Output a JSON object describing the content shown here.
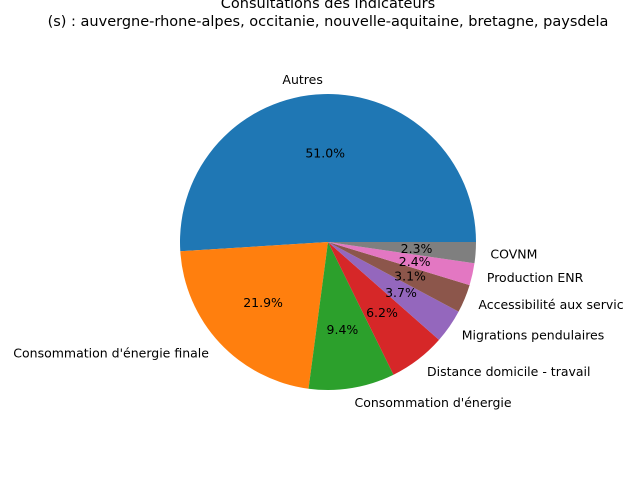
{
  "chart_data": {
    "type": "pie",
    "title": "Consultations des indicateurs",
    "subtitle": "(s) : auvergne-rhone-alpes, occitanie, nouvelle-aquitaine, bretagne, paysdela",
    "slices": [
      {
        "label": "Autres",
        "pct_label": "51.0%",
        "value": 51.0,
        "color": "#1f77b4"
      },
      {
        "label": "Consommation d'énergie finale",
        "pct_label": "21.9%",
        "value": 21.9,
        "color": "#ff7f0e"
      },
      {
        "label": "Consommation d'énergie",
        "pct_label": "9.4%",
        "value": 9.4,
        "color": "#2ca02c"
      },
      {
        "label": "Distance domicile - travail",
        "pct_label": "6.2%",
        "value": 6.2,
        "color": "#d62728"
      },
      {
        "label": "Migrations pendulaires",
        "pct_label": "3.7%",
        "value": 3.7,
        "color": "#9467bd"
      },
      {
        "label": "Accessibilité aux servic",
        "pct_label": "3.1%",
        "value": 3.1,
        "color": "#8c564b"
      },
      {
        "label": "Production ENR",
        "pct_label": "2.4%",
        "value": 2.4,
        "color": "#e377c2"
      },
      {
        "label": "COVNM",
        "pct_label": "2.3%",
        "value": 2.3,
        "color": "#7f7f7f"
      }
    ],
    "start_angle": "0° (3 o'clock)",
    "direction": "counterclockwise",
    "legend": "none"
  }
}
